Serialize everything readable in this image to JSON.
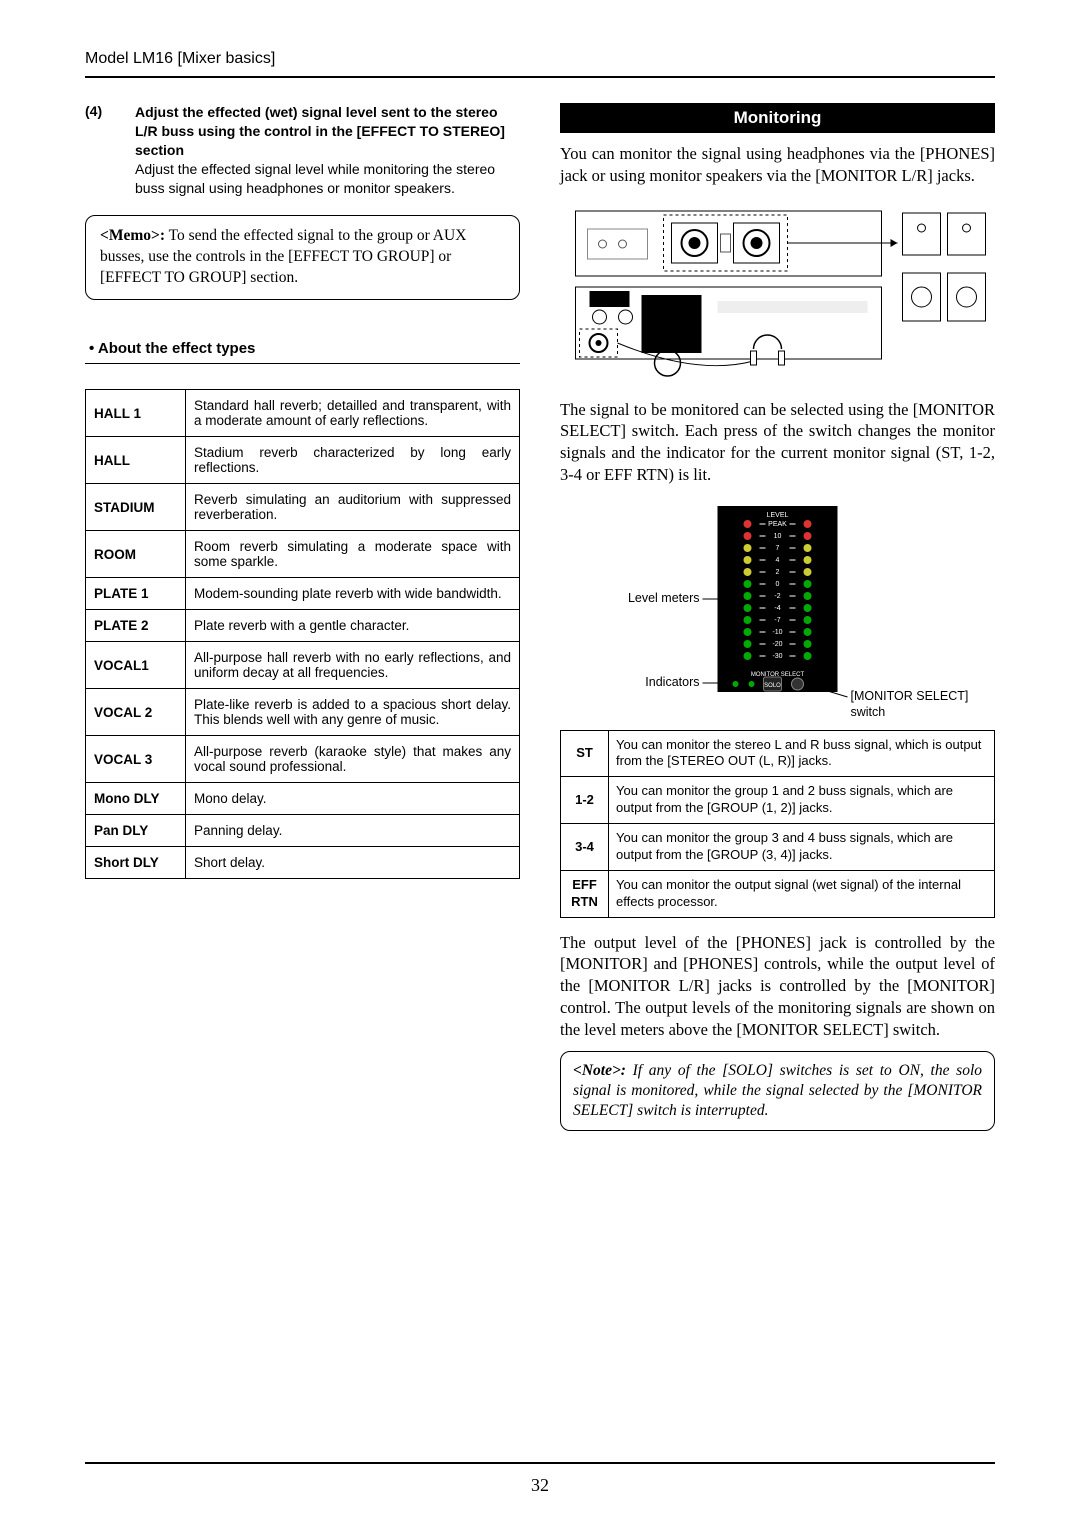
{
  "header": "Model LM16 [Mixer basics]",
  "left": {
    "item4": {
      "num": "(4)",
      "bold": "Adjust the effected (wet) signal level sent to the stereo L/R buss using the control in the [EFFECT TO STEREO] section",
      "plain": "Adjust the effected signal level while monitoring the stereo buss signal using headphones or monitor speakers."
    },
    "memo": {
      "label": "<Memo>:",
      "text": " To send the effected signal to the group or AUX busses, use the controls in the [EFFECT TO GROUP] or [EFFECT TO GROUP] section."
    },
    "about_head": "• About the effect types",
    "fx": [
      {
        "n": "HALL 1",
        "d": "Standard hall reverb; detailled and transparent, with a moderate amount of early reflections."
      },
      {
        "n": "HALL",
        "d": "Stadium reverb characterized by long early reflections."
      },
      {
        "n": "STADIUM",
        "d": "Reverb simulating an auditorium with suppressed reverberation."
      },
      {
        "n": "ROOM",
        "d": "Room reverb simulating a moderate space with some sparkle."
      },
      {
        "n": "PLATE 1",
        "d": "Modem-sounding plate reverb with wide bandwidth."
      },
      {
        "n": "PLATE 2",
        "d": "Plate reverb with a gentle character."
      },
      {
        "n": "VOCAL1",
        "d": "All-purpose hall reverb with no early reflections, and uniform decay at all frequencies."
      },
      {
        "n": "VOCAL 2",
        "d": "Plate-like reverb is added to a spacious short delay. This blends well with any genre of music."
      },
      {
        "n": "VOCAL 3",
        "d": "All-purpose reverb (karaoke style) that makes any vocal sound professional."
      },
      {
        "n": "Mono DLY",
        "d": "Mono delay."
      },
      {
        "n": "Pan DLY",
        "d": "Panning delay."
      },
      {
        "n": "Short DLY",
        "d": "Short delay."
      }
    ]
  },
  "right": {
    "mon_head": "Monitoring",
    "p1": "You can monitor the signal using headphones via the [PHONES] jack or using monitor speakers via the [MONITOR L/R] jacks.",
    "p2": "The signal to be monitored can be selected using the [MONITOR SELECT] switch. Each press of the switch changes the monitor signals and the indicator for the current monitor signal (ST, 1-2, 3-4 or EFF RTN) is lit.",
    "lbl_level": "Level meters",
    "lbl_ind": "Indicators",
    "lbl_switch": "[MONITOR SELECT] switch",
    "mon": [
      {
        "k": "ST",
        "d": "You can monitor the stereo L and R buss signal, which is output from the [STEREO OUT (L, R)] jacks."
      },
      {
        "k": "1-2",
        "d": "You can monitor the group 1 and 2 buss signals, which are output from the [GROUP (1, 2)] jacks."
      },
      {
        "k": "3-4",
        "d": "You can monitor the group 3 and 4 buss signals, which are output from the [GROUP (3, 4)] jacks."
      },
      {
        "k": "EFF RTN",
        "d": "You can monitor the output signal (wet signal) of the internal effects processor."
      }
    ],
    "p3": "The output level of the [PHONES] jack is controlled by the [MONITOR] and [PHONES] controls, while the output level of the [MONITOR L/R] jacks is controlled by the [MONITOR] control. The output levels of the monitoring signals are shown on the level meters above the [MONITOR SELECT] switch.",
    "note": {
      "label": "<Note>:",
      "text": " If any of the [SOLO] switches is set to ON, the solo signal is monitored, while the signal selected by the [MONITOR SELECT] switch is interrupted."
    }
  },
  "page": "32",
  "meter": {
    "ticks": [
      "PEAK",
      "10",
      "7",
      "4",
      "2",
      "0",
      "-2",
      "-4",
      "-7",
      "-10",
      "-20",
      "-30"
    ]
  }
}
